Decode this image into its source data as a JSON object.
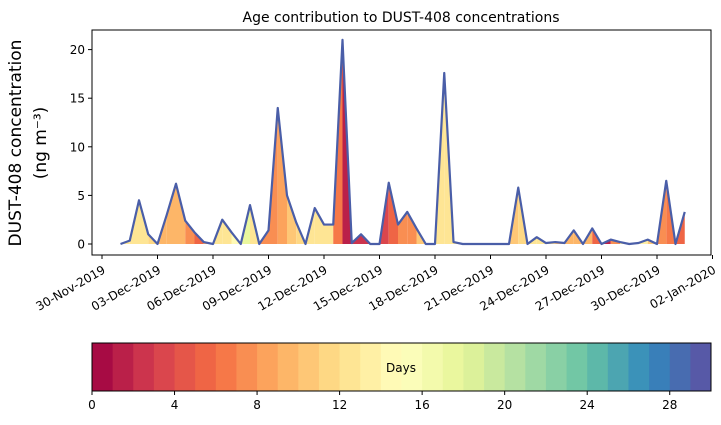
{
  "chart_data": {
    "type": "area",
    "title": "Age contribution to DUST-408 concentrations",
    "ylabel_line1": "DUST-408 concentration",
    "ylabel_line2": "(ng m⁻³)",
    "xlabel": "",
    "ylim": [
      -1.1,
      22
    ],
    "yticks": [
      0,
      5,
      10,
      15,
      20
    ],
    "xticks": [
      "30-Nov-2019",
      "03-Dec-2019",
      "06-Dec-2019",
      "09-Dec-2019",
      "12-Dec-2019",
      "15-Dec-2019",
      "18-Dec-2019",
      "21-Dec-2019",
      "24-Dec-2019",
      "27-Dec-2019",
      "30-Dec-2019",
      "02-Jan-2020"
    ],
    "xtick_day_offsets": [
      0,
      3,
      6,
      9,
      12,
      15,
      18,
      21,
      24,
      27,
      30,
      33
    ],
    "series_start": "2019-12-01 00:00",
    "interval_hours": 12,
    "total_concentration": [
      0,
      0.35,
      4.5,
      1.0,
      0,
      3.0,
      6.2,
      2.4,
      1.2,
      0.2,
      0,
      2.5,
      1.2,
      0,
      4.0,
      0,
      1.4,
      14.0,
      5.0,
      2.2,
      0,
      3.7,
      2.0,
      2.0,
      21.0,
      0.1,
      1.0,
      0,
      0,
      6.3,
      2.0,
      3.3,
      1.6,
      0,
      0,
      17.6,
      0.2,
      0,
      0,
      0,
      0,
      0,
      0,
      5.8,
      0,
      0.7,
      0.1,
      0.2,
      0.1,
      1.4,
      0,
      1.6,
      0,
      0.45,
      0.2,
      0,
      0.1,
      0.45,
      0,
      6.5,
      0,
      3.3
    ],
    "dominant_age_days": [
      12,
      12,
      12,
      12,
      10,
      9,
      10,
      9,
      6,
      4,
      12,
      12,
      12,
      17,
      17,
      7,
      7,
      8,
      9,
      11,
      12,
      12,
      12,
      12,
      1,
      2,
      2,
      2,
      3,
      3,
      7,
      7,
      8,
      12,
      12,
      12,
      12,
      12,
      12,
      12,
      12,
      12,
      10,
      10,
      12,
      12,
      12,
      10,
      9,
      9,
      9,
      9,
      1,
      1,
      13,
      13,
      13,
      13,
      7,
      7,
      5,
      5
    ],
    "colorbar": {
      "label": "Days",
      "range": [
        0,
        30
      ],
      "n_bands": 30,
      "ticks": [
        0,
        4,
        8,
        12,
        16,
        20,
        24,
        28
      ],
      "colormap": "Spectral",
      "colormap_stops": [
        "#9e0142",
        "#d53e4f",
        "#f46d43",
        "#fdae61",
        "#fee08b",
        "#ffffbf",
        "#e6f598",
        "#abdda4",
        "#66c2a5",
        "#3288bd",
        "#5e4fa2"
      ]
    }
  }
}
